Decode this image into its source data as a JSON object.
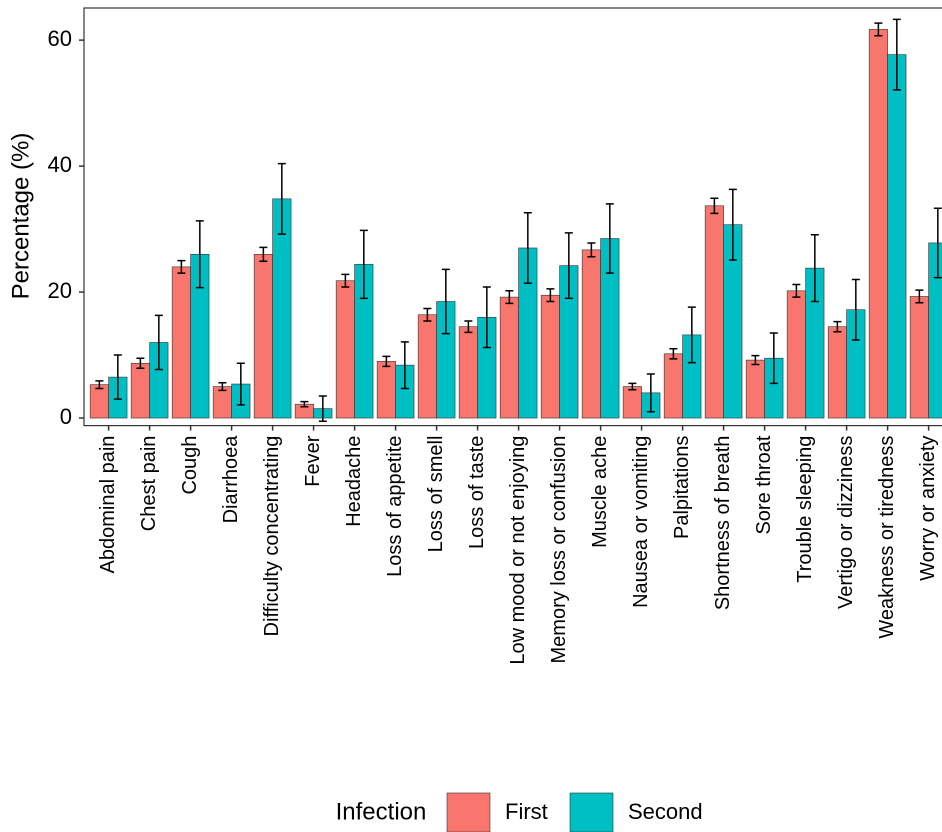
{
  "chart_data": {
    "type": "bar",
    "y_label": "Percentage (%)",
    "legend_title": "Infection",
    "categories": [
      "Abdominal pain",
      "Chest pain",
      "Cough",
      "Diarrhoea",
      "Difficulty concentrating",
      "Fever",
      "Headache",
      "Loss of appetite",
      "Loss of smell",
      "Loss of taste",
      "Low mood or not enjoying",
      "Memory loss or confusion",
      "Muscle ache",
      "Nausea or vomiting",
      "Palpitations",
      "Shortness of breath",
      "Sore throat",
      "Trouble sleeping",
      "Vertigo or dizziness",
      "Weakness or tiredness",
      "Worry or anxiety"
    ],
    "series": [
      {
        "name": "First",
        "color": "#F8766D",
        "values": [
          5.3,
          8.7,
          24,
          5,
          26,
          2.2,
          21.8,
          9,
          16.4,
          14.5,
          19.2,
          19.5,
          26.7,
          5,
          10.2,
          33.7,
          9.2,
          20.2,
          14.5,
          61.7,
          19.3
        ],
        "errors": [
          0.6,
          0.8,
          1,
          0.6,
          1.1,
          0.4,
          1,
          0.8,
          1,
          0.9,
          1,
          1,
          1.1,
          0.5,
          0.8,
          1.2,
          0.7,
          1,
          0.8,
          1,
          1
        ]
      },
      {
        "name": "Second",
        "color": "#00BFC4",
        "values": [
          6.5,
          12,
          26,
          5.4,
          34.8,
          1.5,
          24.4,
          8.4,
          18.5,
          16,
          27,
          24.2,
          28.5,
          4,
          13.2,
          30.7,
          9.5,
          23.8,
          17.2,
          57.7,
          27.8
        ],
        "errors": [
          3.5,
          4.3,
          5.3,
          3.3,
          5.6,
          2,
          5.4,
          3.7,
          5.1,
          4.8,
          5.6,
          5.2,
          5.5,
          3,
          4.4,
          5.6,
          4,
          5.3,
          4.8,
          5.6,
          5.5
        ]
      }
    ],
    "ylim": [
      -1.2,
      65.1
    ],
    "yticks": [
      0,
      20,
      40,
      60
    ]
  }
}
